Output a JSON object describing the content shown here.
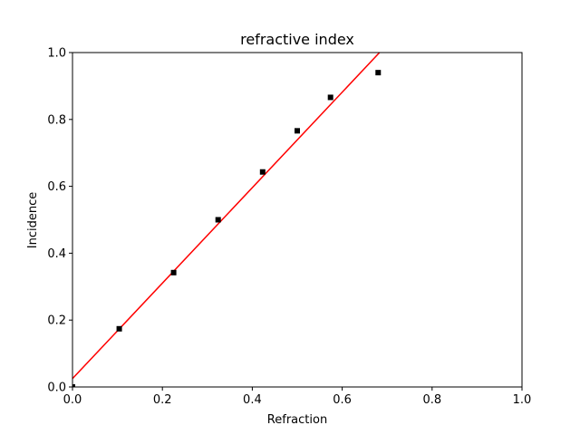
{
  "chart_data": {
    "type": "scatter",
    "title": "refractive index",
    "xlabel": "Refraction",
    "ylabel": "Incidence",
    "xlim": [
      0.0,
      1.0
    ],
    "ylim": [
      0.0,
      1.0
    ],
    "grid": false,
    "x_ticks": [
      "0.0",
      "0.2",
      "0.4",
      "0.6",
      "0.8",
      "1.0"
    ],
    "y_ticks": [
      "0.0",
      "0.2",
      "0.4",
      "0.6",
      "0.8",
      "1.0"
    ],
    "series": [
      {
        "kind": "scatter",
        "marker": "square",
        "color": "#000000",
        "points": [
          {
            "x": 0.0,
            "y": 0.0
          },
          {
            "x": 0.104,
            "y": 0.174
          },
          {
            "x": 0.225,
            "y": 0.342
          },
          {
            "x": 0.324,
            "y": 0.5
          },
          {
            "x": 0.423,
            "y": 0.643
          },
          {
            "x": 0.5,
            "y": 0.766
          },
          {
            "x": 0.574,
            "y": 0.866
          },
          {
            "x": 0.68,
            "y": 0.94
          }
        ]
      },
      {
        "kind": "line",
        "color": "#ff0000",
        "points": [
          {
            "x": 0.0,
            "y": 0.025
          },
          {
            "x": 0.683,
            "y": 1.0
          }
        ]
      }
    ]
  }
}
